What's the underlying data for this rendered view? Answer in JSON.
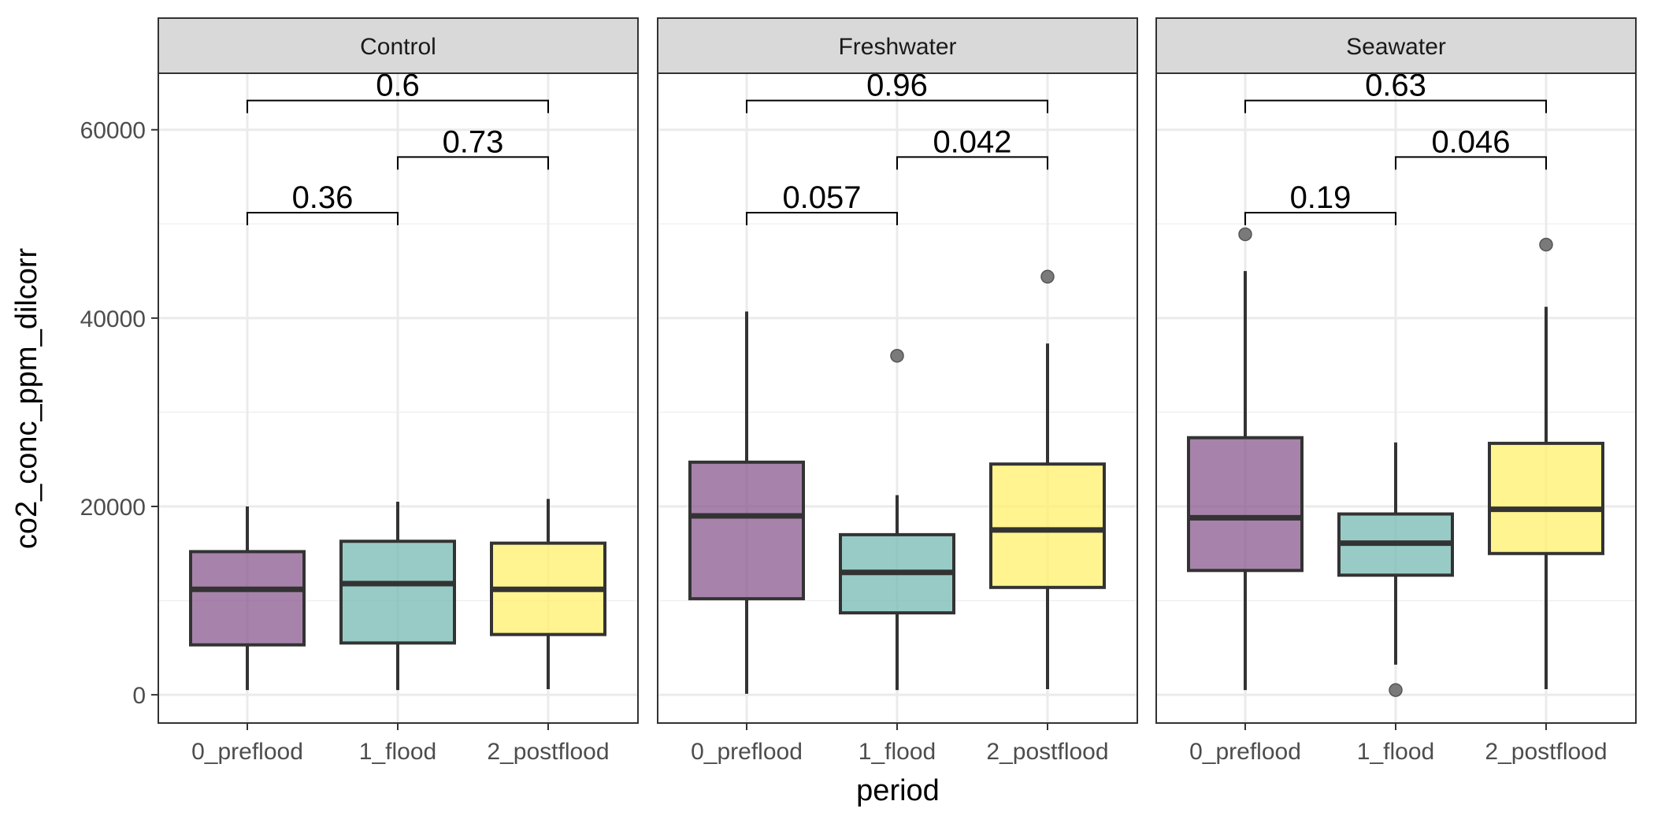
{
  "chart_data": {
    "type": "boxplot",
    "xlabel": "period",
    "ylabel": "co2_conc_ppm_dilcorr",
    "categories": [
      "0_preflood",
      "1_flood",
      "2_postflood"
    ],
    "colors": [
      "#8a5a8f",
      "#75b9b3",
      "#fff06a"
    ],
    "ylim": [
      -3000,
      66000
    ],
    "yticks": [
      0,
      20000,
      40000,
      60000
    ],
    "ytick_labels": [
      "0",
      "20000",
      "40000",
      "60000"
    ],
    "grid": true,
    "facets": [
      {
        "name": "Control",
        "boxes": [
          {
            "category": "0_preflood",
            "min": 500,
            "q1": 5300,
            "median": 11200,
            "q3": 15200,
            "max": 20000,
            "outliers": []
          },
          {
            "category": "1_flood",
            "min": 500,
            "q1": 5500,
            "median": 11800,
            "q3": 16300,
            "max": 20500,
            "outliers": []
          },
          {
            "category": "2_postflood",
            "min": 600,
            "q1": 6400,
            "median": 11200,
            "q3": 16100,
            "max": 20800,
            "outliers": []
          }
        ],
        "comparisons": [
          {
            "from": 0,
            "to": 1,
            "y": 51200,
            "label": "0.36"
          },
          {
            "from": 1,
            "to": 2,
            "y": 57100,
            "label": "0.73"
          },
          {
            "from": 0,
            "to": 2,
            "y": 63100,
            "label": "0.6"
          }
        ]
      },
      {
        "name": "Freshwater",
        "boxes": [
          {
            "category": "0_preflood",
            "min": 100,
            "q1": 10200,
            "median": 19000,
            "q3": 24700,
            "max": 40700,
            "outliers": []
          },
          {
            "category": "1_flood",
            "min": 500,
            "q1": 8700,
            "median": 13000,
            "q3": 17000,
            "max": 21200,
            "outliers": [
              36000
            ]
          },
          {
            "category": "2_postflood",
            "min": 600,
            "q1": 11400,
            "median": 17500,
            "q3": 24500,
            "max": 37300,
            "outliers": [
              44400
            ]
          }
        ],
        "comparisons": [
          {
            "from": 0,
            "to": 1,
            "y": 51200,
            "label": "0.057"
          },
          {
            "from": 1,
            "to": 2,
            "y": 57100,
            "label": "0.042"
          },
          {
            "from": 0,
            "to": 2,
            "y": 63100,
            "label": "0.96"
          }
        ]
      },
      {
        "name": "Seawater",
        "boxes": [
          {
            "category": "0_preflood",
            "min": 500,
            "q1": 13200,
            "median": 18800,
            "q3": 27300,
            "max": 45000,
            "outliers": [
              48900
            ]
          },
          {
            "category": "1_flood",
            "min": 3200,
            "q1": 12700,
            "median": 16100,
            "q3": 19200,
            "max": 26800,
            "outliers": [
              500
            ]
          },
          {
            "category": "2_postflood",
            "min": 600,
            "q1": 15000,
            "median": 19700,
            "q3": 26700,
            "max": 41200,
            "outliers": [
              47800
            ]
          }
        ],
        "comparisons": [
          {
            "from": 0,
            "to": 1,
            "y": 51200,
            "label": "0.19"
          },
          {
            "from": 1,
            "to": 2,
            "y": 57100,
            "label": "0.046"
          },
          {
            "from": 0,
            "to": 2,
            "y": 63100,
            "label": "0.63"
          }
        ]
      }
    ]
  }
}
